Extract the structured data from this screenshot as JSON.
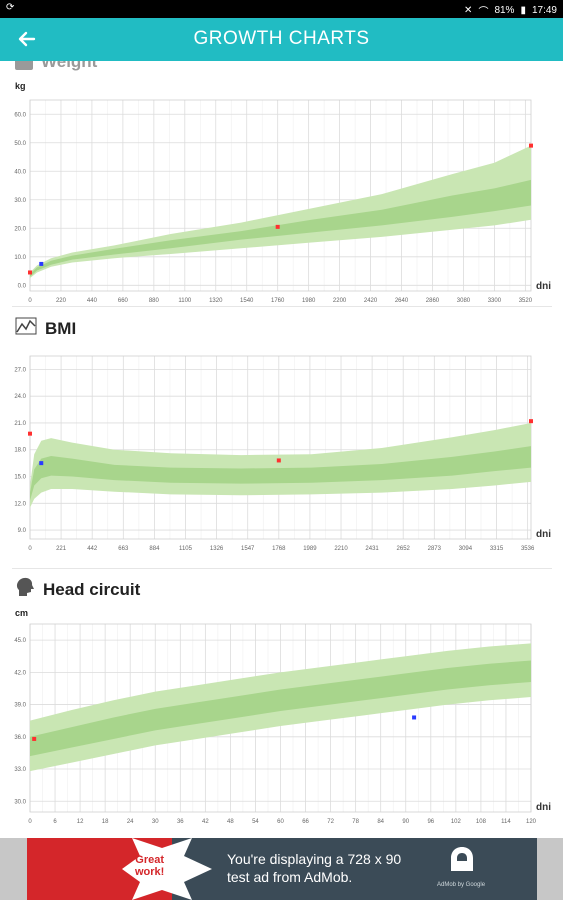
{
  "status_bar": {
    "battery": "81%",
    "time": "17:49"
  },
  "app_bar": {
    "title": "GROWTH CHARTS",
    "back_icon": "arrow-left-icon"
  },
  "weight": {
    "title": "Weight",
    "unit": "kg",
    "x_unit": "dni",
    "y_ticks": [
      "60.0",
      "50.0",
      "40.0",
      "30.0",
      "20.0",
      "10.0",
      "0.0"
    ],
    "x_ticks": [
      "0",
      "220",
      "440",
      "660",
      "880",
      "1100",
      "1320",
      "1540",
      "1760",
      "1980",
      "2200",
      "2420",
      "2640",
      "2860",
      "3080",
      "3300",
      "3520"
    ]
  },
  "bmi": {
    "title": "BMI",
    "x_unit": "dni",
    "y_ticks": [
      "27.0",
      "24.0",
      "21.0",
      "18.0",
      "15.0",
      "12.0",
      "9.0"
    ],
    "x_ticks": [
      "0",
      "221",
      "442",
      "663",
      "884",
      "1105",
      "1326",
      "1547",
      "1768",
      "1989",
      "2210",
      "2431",
      "2652",
      "2873",
      "3094",
      "3315",
      "3536"
    ]
  },
  "head": {
    "title": "Head circuit",
    "unit": "cm",
    "x_unit": "dni",
    "y_ticks": [
      "45.0",
      "42.0",
      "39.0",
      "36.0",
      "33.0",
      "30.0"
    ],
    "x_ticks": [
      "0",
      "6",
      "12",
      "18",
      "24",
      "30",
      "36",
      "42",
      "48",
      "54",
      "60",
      "66",
      "72",
      "78",
      "84",
      "90",
      "96",
      "102",
      "108",
      "114",
      "120"
    ]
  },
  "chart_data": [
    {
      "type": "area",
      "title": "Weight",
      "ylabel": "kg",
      "xlabel": "dni",
      "xlim": [
        0,
        3560
      ],
      "ylim": [
        -2,
        65
      ],
      "grid": true,
      "series": [
        {
          "x": [
            0,
            50,
            150,
            300,
            600,
            1000,
            1500,
            2000,
            2500,
            3000,
            3300,
            3560
          ],
          "outer_low": [
            2.5,
            4.5,
            6.5,
            8,
            9.5,
            11,
            13,
            15,
            17,
            19.5,
            21,
            23
          ],
          "outer_high": [
            4.5,
            7,
            9.5,
            11.5,
            14,
            18,
            22,
            27,
            32,
            39,
            43,
            49
          ]
        },
        {
          "x": [
            0,
            50,
            150,
            300,
            600,
            1000,
            1500,
            2000,
            2500,
            3000,
            3300,
            3560
          ],
          "inner_low": [
            3,
            5.2,
            7.2,
            9,
            10.8,
            13,
            16,
            18.5,
            21,
            24,
            26,
            28
          ],
          "inner_high": [
            4,
            6.3,
            8.6,
            10.4,
            12.8,
            15.8,
            19,
            23,
            26.5,
            31.5,
            34,
            37
          ]
        }
      ],
      "points": [
        {
          "x": 0,
          "y": 4.5,
          "color": "#ff3030"
        },
        {
          "x": 80,
          "y": 7.5,
          "color": "#2a3bff"
        },
        {
          "x": 1760,
          "y": 20.5,
          "color": "#ff3030"
        },
        {
          "x": 3560,
          "y": 49,
          "color": "#ff3030"
        }
      ]
    },
    {
      "type": "area",
      "title": "BMI",
      "xlabel": "dni",
      "xlim": [
        0,
        3560
      ],
      "ylim": [
        8,
        28.5
      ],
      "grid": true,
      "series": [
        {
          "x": [
            0,
            30,
            80,
            150,
            300,
            600,
            1000,
            1500,
            2000,
            2500,
            3000,
            3300,
            3560
          ],
          "outer_low": [
            11.5,
            12.5,
            13.2,
            13.6,
            13.6,
            13.3,
            13,
            12.9,
            13,
            13.2,
            13.6,
            14,
            14.4
          ],
          "outer_high": [
            14,
            17.5,
            19,
            19.3,
            18.8,
            18,
            17.6,
            17.4,
            17.5,
            18.2,
            19.4,
            20.2,
            21
          ]
        },
        {
          "x": [
            0,
            30,
            80,
            150,
            300,
            600,
            1000,
            1500,
            2000,
            2500,
            3000,
            3300,
            3560
          ],
          "inner_low": [
            12.3,
            14,
            14.8,
            15.1,
            15,
            14.6,
            14.3,
            14.2,
            14.3,
            14.6,
            15.1,
            15.6,
            16
          ]
        },
        {
          "x": [
            0,
            30,
            80,
            150,
            300,
            600,
            1000,
            1500,
            2000,
            2500,
            3000,
            3300,
            3560
          ],
          "inner_high": [
            13.2,
            15.8,
            17,
            17.3,
            17,
            16.3,
            16,
            15.9,
            16,
            16.4,
            17.2,
            17.8,
            18.4
          ]
        }
      ],
      "points": [
        {
          "x": 0,
          "y": 19.8,
          "color": "#ff3030"
        },
        {
          "x": 80,
          "y": 16.5,
          "color": "#2a3bff"
        },
        {
          "x": 1768,
          "y": 16.8,
          "color": "#ff3030"
        },
        {
          "x": 3560,
          "y": 21.2,
          "color": "#ff3030"
        }
      ]
    },
    {
      "type": "area",
      "title": "Head circuit",
      "ylabel": "cm",
      "xlabel": "dni",
      "xlim": [
        0,
        120
      ],
      "ylim": [
        29,
        46.5
      ],
      "grid": true,
      "series": [
        {
          "x": [
            0,
            10,
            20,
            30,
            40,
            50,
            60,
            70,
            80,
            90,
            100,
            110,
            120
          ],
          "outer_low": [
            32.8,
            33.6,
            34.4,
            35.2,
            35.8,
            36.4,
            37,
            37.5,
            38,
            38.5,
            39,
            39.4,
            39.7
          ],
          "outer_high": [
            37.5,
            38.5,
            39.4,
            40.2,
            40.8,
            41.4,
            42,
            42.5,
            43,
            43.5,
            44,
            44.4,
            44.7
          ]
        },
        {
          "x": [
            0,
            10,
            20,
            30,
            40,
            50,
            60,
            70,
            80,
            90,
            100,
            110,
            120
          ],
          "inner_low": [
            34.2,
            35,
            35.8,
            36.6,
            37.2,
            37.8,
            38.4,
            38.9,
            39.4,
            39.9,
            40.4,
            40.8,
            41.1
          ],
          "inner_high": [
            36,
            36.9,
            37.8,
            38.6,
            39.2,
            39.8,
            40.4,
            40.9,
            41.4,
            41.9,
            42.4,
            42.8,
            43.1
          ]
        }
      ],
      "points": [
        {
          "x": 1,
          "y": 35.8,
          "color": "#ff3030"
        },
        {
          "x": 92,
          "y": 37.8,
          "color": "#2a3bff"
        }
      ]
    }
  ],
  "ad": {
    "badge_line1": "Great",
    "badge_line2": "work!",
    "text_line1": "You're displaying a 728 x 90",
    "text_line2": "test ad from AdMob.",
    "brand": "AdMob by Google"
  }
}
